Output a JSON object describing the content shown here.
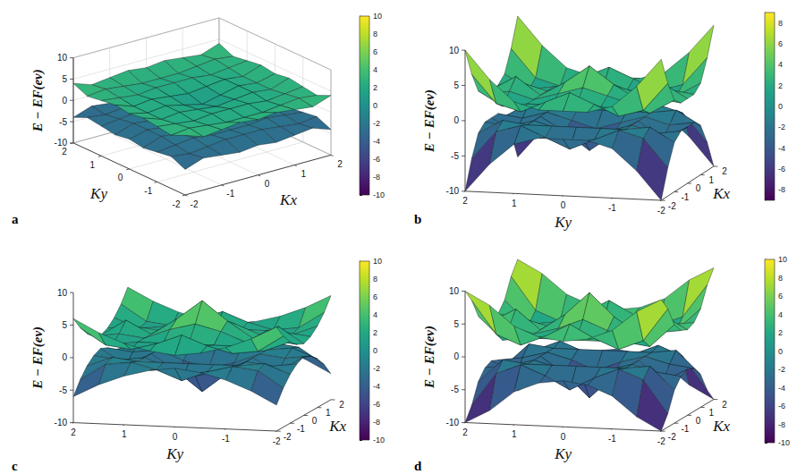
{
  "chart_data": [
    {
      "label": "a",
      "type": "surface",
      "x_label": "Kx",
      "y_label": "Ky",
      "z_label": "E − EF(ev)",
      "x": [
        -2,
        -1.5,
        -1,
        -0.5,
        0,
        0.5,
        1,
        1.5,
        2
      ],
      "y": [
        -2,
        -1.5,
        -1,
        -0.5,
        0,
        0.5,
        1,
        1.5,
        2
      ],
      "xlim": [
        -2,
        2
      ],
      "ylim": [
        -2,
        2
      ],
      "zlim": [
        -10,
        10
      ],
      "xticks": [
        -2,
        -1,
        0,
        1,
        2
      ],
      "yticks": [
        -2,
        -1,
        0,
        1,
        2
      ],
      "zticks": [
        -10,
        -5,
        0,
        5,
        10
      ],
      "grid": true,
      "colorbar_range": [
        -10,
        10
      ],
      "colorbar_ticks": [
        -10,
        -8,
        -6,
        -4,
        -2,
        0,
        2,
        4,
        6,
        8,
        10
      ],
      "series": [
        {
          "values": [
            [
              4,
              2.5,
              3,
              3.5,
              3,
              3.5,
              3,
              2.5,
              4
            ],
            [
              2.5,
              3,
              2.5,
              2,
              2,
              2,
              2.5,
              3,
              2.5
            ],
            [
              3,
              2.5,
              2,
              2.5,
              2.5,
              2.5,
              2,
              2.5,
              3
            ],
            [
              3.5,
              2,
              2.5,
              2,
              1.5,
              2,
              2.5,
              2,
              3.5
            ],
            [
              3,
              2,
              2.5,
              1.5,
              0.5,
              1.5,
              2.5,
              2,
              3
            ],
            [
              3.5,
              2,
              2.5,
              2,
              1.5,
              2,
              2.5,
              2,
              3.5
            ],
            [
              3,
              2.5,
              2,
              2.5,
              2.5,
              2.5,
              2,
              2.5,
              3
            ],
            [
              2.5,
              3,
              2.5,
              2,
              2,
              2,
              2.5,
              3,
              2.5
            ],
            [
              4,
              2.5,
              3,
              3.5,
              3,
              3.5,
              3,
              2.5,
              4
            ]
          ]
        },
        {
          "values": [
            [
              -4,
              -2.5,
              -3,
              -3.5,
              -3,
              -3.5,
              -3,
              -2.5,
              -4
            ],
            [
              -2.5,
              -3,
              -2.5,
              -2,
              -2,
              -2,
              -2.5,
              -3,
              -2.5
            ],
            [
              -3,
              -2.5,
              -2,
              -2.5,
              -2.5,
              -2.5,
              -2,
              -2.5,
              -3
            ],
            [
              -3.5,
              -2,
              -2.5,
              -2,
              -1.5,
              -2,
              -2.5,
              -2,
              -3.5
            ],
            [
              -3,
              -2,
              -2.5,
              -1.5,
              -0.5,
              -1.5,
              -2.5,
              -2,
              -3
            ],
            [
              -3.5,
              -2,
              -2.5,
              -2,
              -1.5,
              -2,
              -2.5,
              -2,
              -3.5
            ],
            [
              -3,
              -2.5,
              -2,
              -2.5,
              -2.5,
              -2.5,
              -2,
              -2.5,
              -3
            ],
            [
              -2.5,
              -3,
              -2.5,
              -2,
              -2,
              -2,
              -2.5,
              -3,
              -2.5
            ],
            [
              -4,
              -2.5,
              -3,
              -3.5,
              -3,
              -3.5,
              -3,
              -2.5,
              -4
            ]
          ]
        }
      ]
    },
    {
      "label": "b",
      "type": "surface",
      "x_label": "Kx",
      "y_label": "Ky",
      "z_label": "E − EF(ev)",
      "x": [
        -2,
        -1.5,
        -1,
        -0.5,
        0,
        0.5,
        1,
        1.5,
        2
      ],
      "y": [
        -2,
        -1.5,
        -1,
        -0.5,
        0,
        0.5,
        1,
        1.5,
        2
      ],
      "xlim": [
        -2,
        2
      ],
      "ylim": [
        -2,
        2
      ],
      "zlim": [
        -10,
        10
      ],
      "xticks": [
        -2,
        -1,
        0,
        1,
        2
      ],
      "yticks": [
        -2,
        -1,
        0,
        1,
        2
      ],
      "zticks": [
        -10,
        -5,
        0,
        5,
        10
      ],
      "grid": false,
      "colorbar_range": [
        -9,
        9
      ],
      "colorbar_ticks": [
        -8,
        -6,
        -4,
        -2,
        0,
        2,
        4,
        6,
        8
      ],
      "series": [
        {
          "values": [
            [
              10,
              6,
              3,
              2,
              2,
              2,
              3,
              6,
              10
            ],
            [
              6,
              2,
              1,
              2.5,
              4,
              2.5,
              1,
              2,
              6
            ],
            [
              3,
              1,
              1.5,
              1.5,
              1.5,
              1.5,
              1.5,
              1,
              3
            ],
            [
              2,
              2.5,
              1.5,
              2.5,
              3.5,
              2.5,
              1.5,
              2.5,
              2
            ],
            [
              2,
              4,
              1.5,
              3.5,
              6,
              3.5,
              1.5,
              4,
              2
            ],
            [
              2,
              2.5,
              1.5,
              2.5,
              3.5,
              2.5,
              1.5,
              2.5,
              2
            ],
            [
              3,
              1,
              1.5,
              1.5,
              1.5,
              1.5,
              1.5,
              1,
              3
            ],
            [
              6,
              2,
              1,
              2.5,
              4,
              2.5,
              1,
              2,
              6
            ],
            [
              10,
              6,
              3,
              2,
              2,
              2,
              3,
              6,
              10
            ]
          ]
        },
        {
          "values": [
            [
              -10,
              -6,
              -3,
              -2,
              -2,
              -2,
              -3,
              -6,
              -10
            ],
            [
              -6,
              -2,
              -1,
              -2.5,
              -4,
              -2.5,
              -1,
              -2,
              -6
            ],
            [
              -3,
              -1,
              -1.5,
              -1.5,
              -1.5,
              -1.5,
              -1.5,
              -1,
              -3
            ],
            [
              -2,
              -2.5,
              -1.5,
              -2.5,
              -3.5,
              -2.5,
              -1.5,
              -2.5,
              -2
            ],
            [
              -2,
              -4,
              -1.5,
              -3.5,
              -6,
              -3.5,
              -1.5,
              -4,
              -2
            ],
            [
              -2,
              -2.5,
              -1.5,
              -2.5,
              -3.5,
              -2.5,
              -1.5,
              -2.5,
              -2
            ],
            [
              -3,
              -1,
              -1.5,
              -1.5,
              -1.5,
              -1.5,
              -1.5,
              -1,
              -3
            ],
            [
              -6,
              -2,
              -1,
              -2.5,
              -4,
              -2.5,
              -1,
              -2,
              -6
            ],
            [
              -10,
              -6,
              -3,
              -2,
              -2,
              -2,
              -3,
              -6,
              -10
            ]
          ]
        }
      ]
    },
    {
      "label": "c",
      "type": "surface",
      "x_label": "Kx",
      "y_label": "Ky",
      "z_label": "E − EF(ev)",
      "x": [
        -2,
        -1.5,
        -1,
        -0.5,
        0,
        0.5,
        1,
        1.5,
        2
      ],
      "y": [
        -2,
        -1.5,
        -1,
        -0.5,
        0,
        0.5,
        1,
        1.5,
        2
      ],
      "xlim": [
        -2,
        2
      ],
      "ylim": [
        -2,
        2
      ],
      "zlim": [
        -10,
        10
      ],
      "xticks": [
        -2,
        -1,
        0,
        1,
        2
      ],
      "yticks": [
        -2,
        -1,
        0,
        1,
        2
      ],
      "zticks": [
        -10,
        -5,
        0,
        5,
        10
      ],
      "grid": false,
      "colorbar_range": [
        -10,
        10
      ],
      "colorbar_ticks": [
        -10,
        -8,
        -6,
        -4,
        -2,
        0,
        2,
        4,
        6,
        8,
        10
      ],
      "series": [
        {
          "values": [
            [
              6,
              4,
              2.5,
              1.5,
              1,
              1.5,
              2.5,
              4,
              6
            ],
            [
              4,
              1.5,
              1,
              2,
              3.5,
              2,
              1,
              1.5,
              4
            ],
            [
              2.5,
              1,
              1.5,
              1.5,
              1.5,
              1.5,
              1.5,
              1,
              2.5
            ],
            [
              1.5,
              2,
              1.5,
              3,
              4,
              3,
              1.5,
              2,
              1.5
            ],
            [
              1,
              3.5,
              1.5,
              4,
              7,
              4,
              1.5,
              3.5,
              1
            ],
            [
              1.5,
              2,
              1.5,
              3,
              4,
              3,
              1.5,
              2,
              1.5
            ],
            [
              2.5,
              1,
              1.5,
              1.5,
              1.5,
              1.5,
              1.5,
              1,
              2.5
            ],
            [
              4,
              1.5,
              1,
              2,
              3.5,
              2,
              1,
              1.5,
              4
            ],
            [
              6,
              4,
              2.5,
              1.5,
              1,
              1.5,
              2.5,
              4,
              6
            ]
          ]
        },
        {
          "values": [
            [
              -6,
              -4,
              -2.5,
              -1.5,
              -1,
              -1.5,
              -2.5,
              -4,
              -6
            ],
            [
              -4,
              -1.5,
              -1,
              -2,
              -3.5,
              -2,
              -1,
              -1.5,
              -4
            ],
            [
              -2.5,
              -1,
              -1.5,
              -1.5,
              -1.5,
              -1.5,
              -1.5,
              -1,
              -2.5
            ],
            [
              -1.5,
              -2,
              -1.5,
              -3,
              -4,
              -3,
              -1.5,
              -2,
              -1.5
            ],
            [
              -1,
              -3.5,
              -1.5,
              -4,
              -7,
              -4,
              -1.5,
              -3.5,
              -1
            ],
            [
              -1.5,
              -2,
              -1.5,
              -3,
              -4,
              -3,
              -1.5,
              -2,
              -1.5
            ],
            [
              -2.5,
              -1,
              -1.5,
              -1.5,
              -1.5,
              -1.5,
              -1.5,
              -1,
              -2.5
            ],
            [
              -4,
              -1.5,
              -1,
              -2,
              -3.5,
              -2,
              -1,
              -1.5,
              -4
            ],
            [
              -6,
              -4,
              -2.5,
              -1.5,
              -1,
              -1.5,
              -2.5,
              -4,
              -6
            ]
          ]
        }
      ]
    },
    {
      "label": "d",
      "type": "surface",
      "x_label": "Kx",
      "y_label": "Ky",
      "z_label": "E − EF(ev)",
      "x": [
        -2,
        -1.5,
        -1,
        -0.5,
        0,
        0.5,
        1,
        1.5,
        2
      ],
      "y": [
        -2,
        -1.5,
        -1,
        -0.5,
        0,
        0.5,
        1,
        1.5,
        2
      ],
      "xlim": [
        -2,
        2
      ],
      "ylim": [
        -2,
        2
      ],
      "zlim": [
        -10,
        10
      ],
      "xticks": [
        -2,
        -1,
        0,
        1,
        2
      ],
      "yticks": [
        -2,
        -1,
        0,
        1,
        2
      ],
      "zticks": [
        -10,
        -5,
        0,
        5,
        10
      ],
      "grid": false,
      "colorbar_range": [
        -10,
        10
      ],
      "colorbar_ticks": [
        -10,
        -8,
        -6,
        -4,
        -2,
        0,
        2,
        4,
        6,
        8,
        10
      ],
      "series": [
        {
          "values": [
            [
              10,
              8,
              5,
              3.5,
              3,
              3.5,
              5,
              8,
              10
            ],
            [
              8,
              3,
              1.5,
              3,
              5,
              3,
              1.5,
              3,
              8
            ],
            [
              5,
              1.5,
              2,
              2,
              2,
              2,
              2,
              1.5,
              5
            ],
            [
              3.5,
              3,
              2,
              3,
              4.5,
              3,
              2,
              3,
              3.5
            ],
            [
              3,
              5,
              2,
              4.5,
              8,
              4.5,
              2,
              5,
              3
            ],
            [
              3.5,
              3,
              2,
              3,
              4.5,
              3,
              2,
              3,
              3.5
            ],
            [
              5,
              1.5,
              2,
              2,
              2,
              2,
              2,
              1.5,
              5
            ],
            [
              8,
              3,
              1.5,
              3,
              5,
              3,
              1.5,
              3,
              8
            ],
            [
              10,
              8,
              5,
              3.5,
              3,
              3.5,
              5,
              8,
              10
            ]
          ]
        },
        {
          "values": [
            [
              -10,
              -8,
              -5,
              -3.5,
              -3,
              -3.5,
              -5,
              -8,
              -10
            ],
            [
              -8,
              -3,
              -1.5,
              -3,
              -5,
              -3,
              -1.5,
              -3,
              -8
            ],
            [
              -5,
              -1.5,
              -2,
              -2,
              -2,
              -2,
              -2,
              -1.5,
              -5
            ],
            [
              -3.5,
              -3,
              -2,
              -3,
              -4.5,
              -3,
              -2,
              -3,
              -3.5
            ],
            [
              -3,
              -5,
              -2,
              -4.5,
              -8,
              -4.5,
              -2,
              -5,
              -3
            ],
            [
              -3.5,
              -3,
              -2,
              -3,
              -4.5,
              -3,
              -2,
              -3,
              -3.5
            ],
            [
              -5,
              -1.5,
              -2,
              -2,
              -2,
              -2,
              -2,
              -1.5,
              -5
            ],
            [
              -8,
              -3,
              -1.5,
              -3,
              -5,
              -3,
              -1.5,
              -3,
              -8
            ],
            [
              -10,
              -8,
              -5,
              -3.5,
              -3,
              -3.5,
              -5,
              -8,
              -10
            ]
          ]
        }
      ]
    }
  ]
}
